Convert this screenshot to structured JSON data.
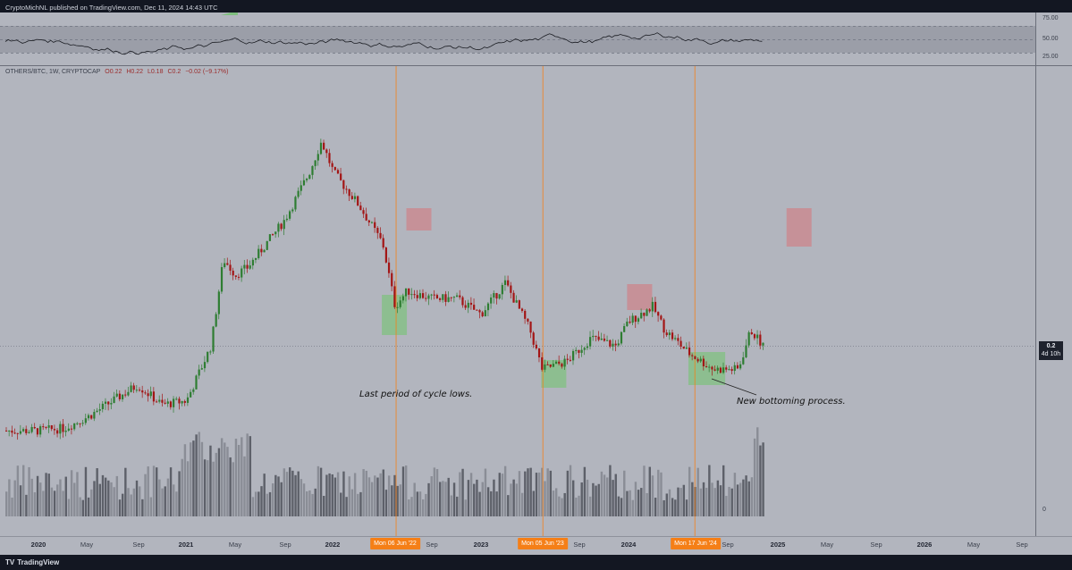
{
  "header": {
    "published": "CryptoMichNL published on TradingView.com, Dec 11, 2024 14:43 UTC"
  },
  "legend": {
    "symbol": "OTHERS/BTC, 1W, CRYPTOCAP",
    "open": "O0.22",
    "high": "H0.22",
    "low": "L0.18",
    "close": "C0.2",
    "change": "−0.02 (−9.17%)"
  },
  "price_tag": {
    "value": "0.2",
    "countdown": "4d 10h"
  },
  "volume_zero_label": "0",
  "rsi_labels": [
    "75.00",
    "50.00",
    "25.00"
  ],
  "x_axis_labels": [
    {
      "text": "2020",
      "bold": true
    },
    {
      "text": "May",
      "bold": false
    },
    {
      "text": "Sep",
      "bold": false
    },
    {
      "text": "2021",
      "bold": true
    },
    {
      "text": "May",
      "bold": false
    },
    {
      "text": "Sep",
      "bold": false
    },
    {
      "text": "2022",
      "bold": true
    },
    {
      "text": "Sep",
      "bold": false
    },
    {
      "text": "2023",
      "bold": true
    },
    {
      "text": "Sep",
      "bold": false
    },
    {
      "text": "2024",
      "bold": true
    },
    {
      "text": "Sep",
      "bold": false
    },
    {
      "text": "2025",
      "bold": true
    },
    {
      "text": "May",
      "bold": false
    },
    {
      "text": "Sep",
      "bold": false
    },
    {
      "text": "2026",
      "bold": true
    },
    {
      "text": "May",
      "bold": false
    },
    {
      "text": "Sep",
      "bold": false
    }
  ],
  "vertical_markers": [
    "Mon 06 Jun '22",
    "Mon 05 Jun '23",
    "Mon 17 Jun '24"
  ],
  "annotations": {
    "cycle_lows": "Last period of cycle lows.",
    "bottoming": "New bottoming process."
  },
  "footer": {
    "brand": "TradingView",
    "logo": "TV"
  },
  "colors": {
    "background": "#b2b5be",
    "bull": "#2e7d32",
    "bear": "#a31515",
    "marker": "#f57f17",
    "green_box": "#86bf88",
    "red_box": "#c98b92",
    "rsi_band": "#9b9ea8"
  },
  "chart_data": [
    {
      "type": "candlestick",
      "title": "OTHERS/BTC, 1W, CRYPTOCAP",
      "x": [
        "2020-01",
        "2020-03",
        "2020-05",
        "2020-07",
        "2020-09",
        "2020-11",
        "2021-01",
        "2021-03",
        "2021-04",
        "2021-05",
        "2021-06",
        "2021-07",
        "2021-09",
        "2021-11",
        "2021-12",
        "2022-01",
        "2022-03",
        "2022-05",
        "2022-06",
        "2022-07",
        "2022-09",
        "2022-11",
        "2023-01",
        "2023-03",
        "2023-05",
        "2023-06",
        "2023-08",
        "2023-10",
        "2023-12",
        "2024-01",
        "2024-03",
        "2024-04",
        "2024-06",
        "2024-08",
        "2024-10",
        "2024-11",
        "2024-12"
      ],
      "close": [
        0.092,
        0.095,
        0.11,
        0.13,
        0.15,
        0.125,
        0.13,
        0.2,
        0.31,
        0.29,
        0.3,
        0.32,
        0.36,
        0.42,
        0.46,
        0.42,
        0.38,
        0.33,
        0.25,
        0.27,
        0.26,
        0.26,
        0.24,
        0.28,
        0.22,
        0.17,
        0.18,
        0.21,
        0.2,
        0.23,
        0.25,
        0.22,
        0.19,
        0.17,
        0.17,
        0.22,
        0.2
      ],
      "price_line": 0.2,
      "volume_note": "weekly volume bars shown in lower pane",
      "rsi_levels": [
        25,
        50,
        75
      ],
      "markers": [
        "2022-06-06",
        "2023-06-05",
        "2024-06-17"
      ],
      "zones": [
        {
          "kind": "support",
          "x": [
            "2022-05",
            "2022-07"
          ]
        },
        {
          "kind": "resistance",
          "x": [
            "2022-07",
            "2022-09"
          ]
        },
        {
          "kind": "support",
          "x": [
            "2023-06",
            "2023-08"
          ]
        },
        {
          "kind": "resistance",
          "x": [
            "2024-01",
            "2024-02"
          ]
        },
        {
          "kind": "support",
          "x": [
            "2024-06",
            "2024-09"
          ]
        },
        {
          "kind": "resistance",
          "x": [
            "2025-02",
            "2025-03"
          ]
        }
      ]
    }
  ]
}
